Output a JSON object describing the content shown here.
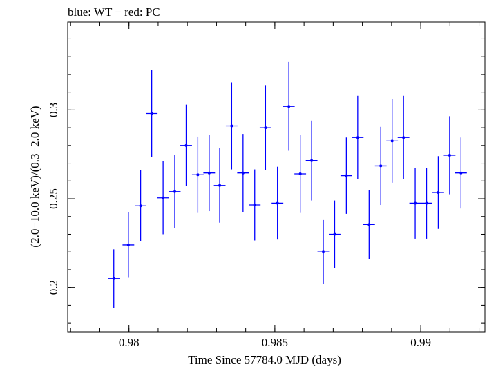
{
  "chart_data": {
    "type": "scatter",
    "title": "blue: WT − red: PC",
    "xlabel": "Time Since 57784.0 MJD (days)",
    "ylabel": "(2.0−10.0 keV)/(0.3−2.0 keV)",
    "xlim": [
      0.9779,
      0.9922
    ],
    "ylim": [
      0.175,
      0.3495
    ],
    "x_ticks": [
      {
        "value": 0.98,
        "label": "0.98"
      },
      {
        "value": 0.985,
        "label": "0.985"
      },
      {
        "value": 0.99,
        "label": "0.99"
      }
    ],
    "y_ticks": [
      {
        "value": 0.2,
        "label": "0.2"
      },
      {
        "value": 0.25,
        "label": "0.25"
      },
      {
        "value": 0.3,
        "label": "0.3"
      }
    ],
    "grid": false,
    "series": [
      {
        "color": "#0000ff",
        "x_halfwidth": 0.0002,
        "points": [
          {
            "x": 0.97948,
            "y": 0.205,
            "err": 0.0165
          },
          {
            "x": 0.97998,
            "y": 0.224,
            "err": 0.0185
          },
          {
            "x": 0.9804,
            "y": 0.246,
            "err": 0.02
          },
          {
            "x": 0.98078,
            "y": 0.298,
            "err": 0.0245
          },
          {
            "x": 0.98117,
            "y": 0.2505,
            "err": 0.0205
          },
          {
            "x": 0.98157,
            "y": 0.254,
            "err": 0.0205
          },
          {
            "x": 0.98196,
            "y": 0.28,
            "err": 0.023
          },
          {
            "x": 0.98236,
            "y": 0.2635,
            "err": 0.0215
          },
          {
            "x": 0.98275,
            "y": 0.2645,
            "err": 0.0215
          },
          {
            "x": 0.98311,
            "y": 0.2575,
            "err": 0.021
          },
          {
            "x": 0.98352,
            "y": 0.291,
            "err": 0.0245
          },
          {
            "x": 0.98391,
            "y": 0.2645,
            "err": 0.022
          },
          {
            "x": 0.98431,
            "y": 0.2465,
            "err": 0.02
          },
          {
            "x": 0.98468,
            "y": 0.29,
            "err": 0.024
          },
          {
            "x": 0.98509,
            "y": 0.2475,
            "err": 0.0205
          },
          {
            "x": 0.98548,
            "y": 0.302,
            "err": 0.025
          },
          {
            "x": 0.98587,
            "y": 0.264,
            "err": 0.022
          },
          {
            "x": 0.98626,
            "y": 0.2715,
            "err": 0.0225
          },
          {
            "x": 0.98666,
            "y": 0.22,
            "err": 0.018
          },
          {
            "x": 0.98705,
            "y": 0.23,
            "err": 0.019
          },
          {
            "x": 0.98745,
            "y": 0.263,
            "err": 0.0215
          },
          {
            "x": 0.98784,
            "y": 0.2845,
            "err": 0.0235
          },
          {
            "x": 0.98823,
            "y": 0.2355,
            "err": 0.0195
          },
          {
            "x": 0.98863,
            "y": 0.2685,
            "err": 0.022
          },
          {
            "x": 0.98902,
            "y": 0.2825,
            "err": 0.0235
          },
          {
            "x": 0.98941,
            "y": 0.2845,
            "err": 0.0235
          },
          {
            "x": 0.98981,
            "y": 0.2475,
            "err": 0.02
          },
          {
            "x": 0.9902,
            "y": 0.2475,
            "err": 0.02
          },
          {
            "x": 0.9906,
            "y": 0.2535,
            "err": 0.0205
          },
          {
            "x": 0.99099,
            "y": 0.2745,
            "err": 0.022
          },
          {
            "x": 0.99138,
            "y": 0.2645,
            "err": 0.02
          }
        ]
      }
    ]
  }
}
